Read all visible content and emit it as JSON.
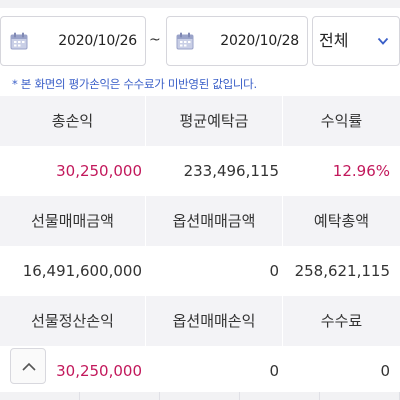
{
  "filter": {
    "start_date": "2020/10/26",
    "separator": "~",
    "end_date": "2020/10/28",
    "account_type": "전체"
  },
  "notice": "* 본 화면의 평가손익은 수수료가 미반영된 값입니다.",
  "summary": {
    "row1_headers": [
      "총손익",
      "평균예탁금",
      "수익률"
    ],
    "row1_values": [
      "30,250,000",
      "233,496,115",
      "12.96%"
    ],
    "row2_headers": [
      "선물매매금액",
      "옵션매매금액",
      "예탁총액"
    ],
    "row2_values": [
      "16,491,600,000",
      "0",
      "258,621,115"
    ],
    "row3_headers": [
      "선물정산손익",
      "옵션매매손익",
      "수수료"
    ],
    "row3_values": [
      "30,250,000",
      "0",
      "0"
    ]
  },
  "colors": {
    "accent_pink": "#c2185b",
    "notice_blue": "#3a5fc8",
    "header_bg": "#f3f3f6"
  },
  "icons": {
    "calendar": "calendar-icon",
    "dropdown": "chevron-down-icon",
    "scroll_top": "chevron-up-icon"
  }
}
